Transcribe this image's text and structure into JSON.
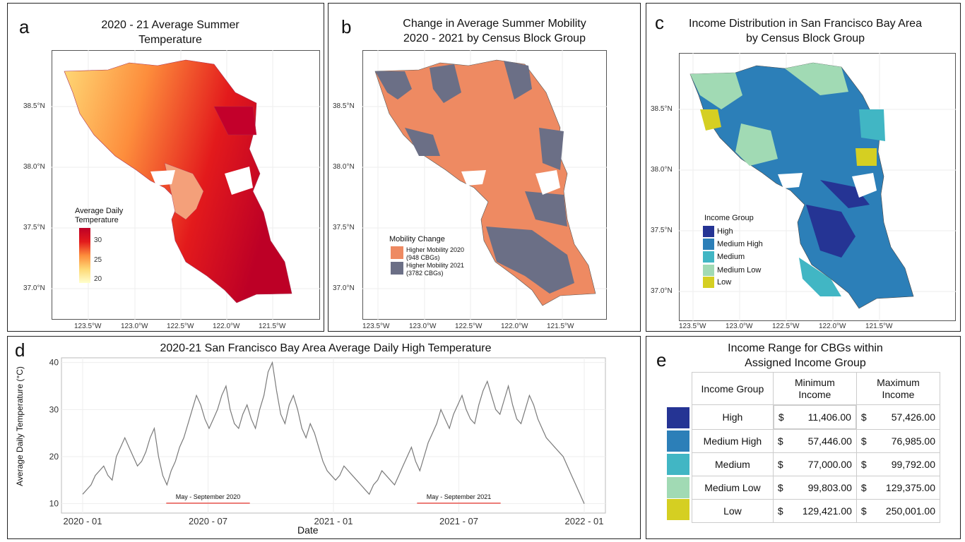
{
  "panel_a": {
    "letter": "a",
    "title_line1": "2020 - 21 Average Summer",
    "title_line2": "Temperature",
    "lat_ticks": [
      "38.5°N",
      "38.0°N",
      "37.5°N",
      "37.0°N"
    ],
    "lon_ticks": [
      "123.5°W",
      "123.0°W",
      "122.5°W",
      "122.0°W",
      "121.5°W"
    ],
    "legend_title_1": "Average Daily",
    "legend_title_2": "Temperature",
    "legend_ticks": [
      "30",
      "25",
      "20"
    ],
    "colors": [
      "#ffffcc",
      "#fed976",
      "#fd8d3c",
      "#e31a1c",
      "#bd0026"
    ]
  },
  "panel_b": {
    "letter": "b",
    "title_line1": "Change in Average Summer Mobility",
    "title_line2": "2020 - 2021 by Census Block Group",
    "lat_ticks": [
      "38.5°N",
      "38.0°N",
      "37.5°N",
      "37.0°N"
    ],
    "lon_ticks": [
      "123.5°W",
      "123.0°W",
      "122.5°W",
      "122.0°W",
      "121.5°W"
    ],
    "legend_title": "Mobility Change",
    "items": [
      {
        "label1": "Higher Mobility 2020",
        "label2": "(948 CBGs)",
        "color": "#ee8a62"
      },
      {
        "label1": "Higher Mobility 2021",
        "label2": "(3782 CBGs)",
        "color": "#6b6f86"
      }
    ]
  },
  "panel_c": {
    "letter": "c",
    "title_line1": "Income Distribution in San Francisco Bay Area",
    "title_line2": "by Census Block Group",
    "lat_ticks": [
      "38.5°N",
      "38.0°N",
      "37.5°N",
      "37.0°N"
    ],
    "lon_ticks": [
      "123.5°W",
      "123.0°W",
      "122.5°W",
      "122.0°W",
      "121.5°W"
    ],
    "legend_title": "Income Group",
    "items": [
      {
        "label": "High",
        "color": "#253494"
      },
      {
        "label": "Medium High",
        "color": "#2c7fb8"
      },
      {
        "label": "Medium",
        "color": "#41b6c4"
      },
      {
        "label": "Medium Low",
        "color": "#a1dab4"
      },
      {
        "label": "Low",
        "color": "#d5cf22"
      }
    ]
  },
  "panel_d": {
    "letter": "d",
    "title": "2020-21 San Francisco Bay Area Average Daily High Temperature",
    "xlabel": "Date",
    "ylabel": "Average Daily Temperature (°C)",
    "annot_1": "May - September 2020",
    "annot_2": "May - September 2021",
    "line_color": "#7a7a7a",
    "annot_color": "#e8554e"
  },
  "panel_e": {
    "letter": "e",
    "title_line1": "Income Range for CBGs within",
    "title_line2": "Assigned Income Group",
    "col_group": "Income Group",
    "col_min_1": "Minimum",
    "col_min_2": "Income",
    "col_max_1": "Maximum",
    "col_max_2": "Income",
    "currency": "$",
    "rows": [
      {
        "group": "High",
        "min": "11,406.00",
        "max": "57,426.00",
        "color": "#253494"
      },
      {
        "group": "Medium High",
        "min": "57,446.00",
        "max": "76,985.00",
        "color": "#2c7fb8"
      },
      {
        "group": "Medium",
        "min": "77,000.00",
        "max": "99,792.00",
        "color": "#41b6c4"
      },
      {
        "group": "Medium Low",
        "min": "99,803.00",
        "max": "129,375.00",
        "color": "#a1dab4"
      },
      {
        "group": "Low",
        "min": "129,421.00",
        "max": "250,001.00",
        "color": "#d5cf22"
      }
    ]
  },
  "chart_data": {
    "type": "line",
    "title": "2020-21 San Francisco Bay Area Average Daily High Temperature",
    "xlabel": "Date",
    "ylabel": "Average Daily Temperature (°C)",
    "x_tick_labels": [
      "2020 - 01",
      "2020 - 07",
      "2021 - 01",
      "2021 - 07",
      "2022 - 01"
    ],
    "y_ticks": [
      10,
      20,
      30,
      40
    ],
    "ylim": [
      8,
      41
    ],
    "grid": true,
    "series": [
      {
        "values": [
          12,
          13,
          14,
          16,
          17,
          18,
          16,
          15,
          20,
          22,
          24,
          22,
          20,
          18,
          19,
          21,
          24,
          26,
          20,
          16,
          14,
          17,
          19,
          22,
          24,
          27,
          30,
          33,
          31,
          28,
          26,
          28,
          30,
          33,
          35,
          30,
          27,
          26,
          29,
          31,
          28,
          26,
          30,
          33,
          38,
          40,
          34,
          29,
          27,
          31,
          33,
          30,
          26,
          24,
          27,
          25,
          22,
          19,
          17,
          16,
          15,
          16,
          18,
          17,
          16,
          15,
          14,
          13,
          12,
          14,
          15,
          17,
          16,
          15,
          14,
          16,
          18,
          20,
          22,
          19,
          17,
          20,
          23,
          25,
          27,
          30,
          28,
          26,
          29,
          31,
          33,
          30,
          28,
          27,
          31,
          34,
          36,
          33,
          30,
          29,
          32,
          35,
          31,
          28,
          27,
          30,
          33,
          31,
          28,
          26,
          24,
          23,
          22,
          21,
          20,
          18,
          16,
          14,
          12,
          10
        ]
      }
    ],
    "annotations": [
      {
        "text": "May - September 2020",
        "x_start": "2020-05",
        "x_end": "2020-09"
      },
      {
        "text": "May - September 2021",
        "x_start": "2021-05",
        "x_end": "2021-09"
      }
    ]
  }
}
